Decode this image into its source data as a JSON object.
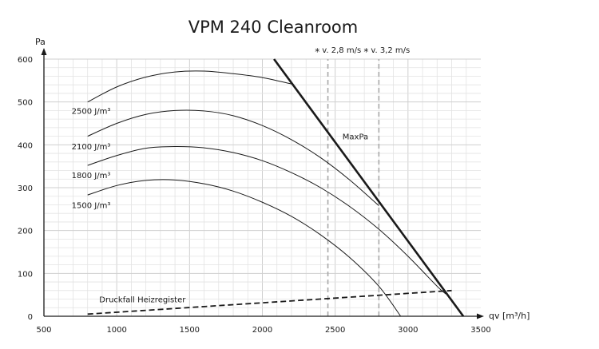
{
  "chart_data": {
    "type": "line",
    "title": "VPM 240 Cleanroom",
    "ylabel": "Pa",
    "xlabel": "qv [m³/h]",
    "xlim": [
      500,
      3500
    ],
    "ylim": [
      0,
      600
    ],
    "x_ticks": [
      "500",
      "1000",
      "1500",
      "2000",
      "2500",
      "3000",
      "3500"
    ],
    "y_ticks": [
      "0",
      "100",
      "200",
      "300",
      "400",
      "500",
      "600"
    ],
    "grid": true,
    "series": [
      {
        "name": "2500 J/m³",
        "style": "thin",
        "x": [
          800,
          1000,
          1200,
          1400,
          1600,
          1800,
          2000,
          2200
        ],
        "y": [
          500,
          535,
          558,
          570,
          572,
          566,
          557,
          542
        ]
      },
      {
        "name": "2100 J/m³",
        "style": "thin",
        "x": [
          800,
          1000,
          1200,
          1400,
          1600,
          1800,
          2000,
          2200,
          2400,
          2600,
          2800
        ],
        "y": [
          420,
          450,
          471,
          480,
          479,
          468,
          445,
          412,
          370,
          318,
          258
        ]
      },
      {
        "name": "1800 J/m³",
        "style": "thin",
        "x": [
          800,
          1000,
          1200,
          1400,
          1600,
          1800,
          2000,
          2200,
          2400,
          2600,
          2800,
          3000,
          3200,
          3260
        ],
        "y": [
          352,
          375,
          392,
          396,
          393,
          382,
          363,
          335,
          300,
          256,
          203,
          140,
          70,
          52
        ]
      },
      {
        "name": "1500 J/m³",
        "style": "thin",
        "x": [
          800,
          1000,
          1200,
          1400,
          1600,
          1800,
          2000,
          2200,
          2400,
          2600,
          2800,
          2950
        ],
        "y": [
          283,
          305,
          317,
          318,
          309,
          292,
          266,
          233,
          190,
          137,
          70,
          0
        ]
      },
      {
        "name": "MaxPa",
        "style": "thick",
        "x": [
          2080,
          3380
        ],
        "y": [
          600,
          0
        ]
      },
      {
        "name": "Druckfall Heizregister",
        "style": "dashed",
        "x": [
          800,
          3300
        ],
        "y": [
          5,
          60
        ]
      },
      {
        "name": "v. 2,8 m/s",
        "style": "velocity",
        "x": [
          2450,
          2450
        ],
        "y": [
          0,
          600
        ]
      },
      {
        "name": "v. 3,2 m/s",
        "style": "velocity",
        "x": [
          2800,
          2800
        ],
        "y": [
          0,
          600
        ]
      }
    ],
    "annotations": [
      {
        "text": "2500 J/m³",
        "x": 690,
        "y": 480
      },
      {
        "text": "2100 J/m³",
        "x": 690,
        "y": 397
      },
      {
        "text": "1800 J/m³",
        "x": 690,
        "y": 330
      },
      {
        "text": "1500 J/m³",
        "x": 690,
        "y": 260
      },
      {
        "text": "MaxPa",
        "x": 2550,
        "y": 420
      },
      {
        "text": "Druckfall Heizregister",
        "x": 880,
        "y": 40
      },
      {
        "text": "v. 2,8 m/s",
        "x": 2410,
        "y": 622
      },
      {
        "text": "v. 3,2 m/s",
        "x": 2745,
        "y": 622
      }
    ],
    "colors": {
      "line": "#1a1a1a",
      "grid_minor": "#e3e3e3",
      "grid_major": "#cfcfcf",
      "velocity": "#a8a8a8"
    }
  }
}
